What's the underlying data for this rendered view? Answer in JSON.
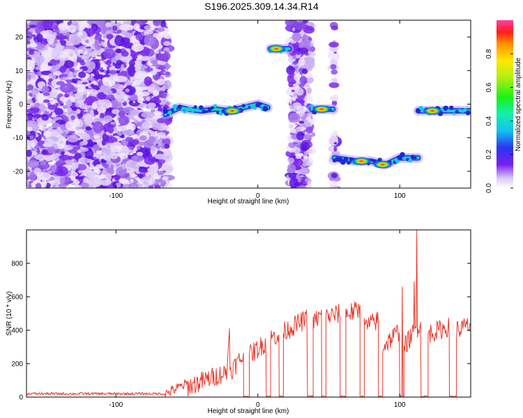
{
  "title": "S196.2025.309.14.34.R14",
  "chart_data": [
    {
      "type": "heatmap",
      "xlabel": "Height of straight line (km)",
      "ylabel": "Frequency (Hz)",
      "xlim": [
        -163,
        150
      ],
      "ylim": [
        -25,
        25
      ],
      "x_ticks": [
        -100,
        0,
        100
      ],
      "y_ticks": [
        -20,
        -10,
        0,
        10,
        20
      ],
      "colorbar": {
        "label": "Normalized spectral amplitude",
        "range": [
          0.0,
          1.0
        ],
        "ticks": [
          "0.0",
          "0.2",
          "0.4",
          "0.6",
          "0.8"
        ],
        "tick_values": [
          0.0,
          0.2,
          0.4,
          0.6,
          0.8
        ]
      },
      "noise_regions": [
        [
          -163,
          -63
        ],
        [
          23,
          37
        ],
        [
          53,
          55
        ]
      ],
      "signal_tracks": [
        {
          "x": [
            -65,
            -55,
            -50,
            -40,
            -30,
            -20,
            -10,
            0,
            7
          ],
          "y": [
            -3,
            -1,
            -1.5,
            -2,
            -1.5,
            -2,
            -1,
            0,
            -1
          ]
        },
        {
          "x": [
            9,
            22
          ],
          "y": [
            16.5,
            16.5
          ]
        },
        {
          "x": [
            38,
            53
          ],
          "y": [
            -1.5,
            -1.5
          ]
        },
        {
          "x": [
            54,
            70,
            80,
            90,
            100,
            113
          ],
          "y": [
            -16,
            -17,
            -17,
            -18,
            -16,
            -16
          ]
        },
        {
          "x": [
            113,
            150
          ],
          "y": [
            -2,
            -2
          ]
        }
      ],
      "peaks": [
        {
          "x": 13,
          "y": 16.5
        },
        {
          "x": 45,
          "y": -1.5
        },
        {
          "x": 73,
          "y": -17
        },
        {
          "x": 88,
          "y": -18
        },
        {
          "x": 123,
          "y": -2
        },
        {
          "x": -18,
          "y": -2
        }
      ]
    },
    {
      "type": "line",
      "xlabel": "Height of straight line (km)",
      "ylabel": "SNR (10 * v/v)",
      "xlim": [
        -163,
        150
      ],
      "ylim": [
        0,
        1000
      ],
      "x_ticks": [
        -100,
        0,
        100
      ],
      "y_ticks": [
        0,
        200,
        400,
        600,
        800
      ],
      "series": [
        {
          "color": "#e8382b",
          "baseline_segments": [
            {
              "x": [
                -163,
                -65
              ],
              "y": 20
            },
            {
              "x": [
                -65,
                -50
              ],
              "y": [
                20,
                80
              ]
            },
            {
              "x": [
                -50,
                -22
              ],
              "y": [
                60,
                150
              ]
            }
          ],
          "segments": [
            {
              "x": [
                -20,
                -10
              ],
              "y": [
                150,
                250
              ],
              "gap_after": [
                -10,
                -6
              ]
            },
            {
              "x": [
                -6,
                6
              ],
              "y": [
                250,
                330
              ],
              "gap_after": [
                6,
                9
              ]
            },
            {
              "x": [
                9,
                15
              ],
              "y": [
                350,
                380
              ],
              "gap_after": [
                15,
                18
              ]
            },
            {
              "x": [
                18,
                35
              ],
              "y": [
                390,
                470
              ],
              "gap_after": [
                35,
                39
              ]
            },
            {
              "x": [
                39,
                45
              ],
              "y": [
                450,
                490
              ],
              "gap_after": [
                45,
                48
              ]
            },
            {
              "x": [
                48,
                58
              ],
              "y": [
                480,
                500
              ],
              "gap_after": [
                58,
                62
              ]
            },
            {
              "x": [
                62,
                72
              ],
              "y": [
                500,
                520
              ],
              "gap_after": [
                72,
                75
              ]
            },
            {
              "x": [
                75,
                85
              ],
              "y": [
                420,
                460
              ],
              "gap_after": [
                85,
                88
              ]
            },
            {
              "x": [
                88,
                100
              ],
              "y": [
                300,
                400
              ],
              "gap_after": [
                100,
                103
              ]
            },
            {
              "x": [
                103,
                115
              ],
              "y": [
                300,
                450
              ],
              "gap_after": [
                115,
                120
              ]
            },
            {
              "x": [
                120,
                135
              ],
              "y": [
                380,
                420
              ],
              "gap_after": [
                135,
                140
              ]
            },
            {
              "x": [
                140,
                150
              ],
              "y": [
                400,
                430
              ]
            }
          ],
          "spikes": [
            {
              "x": -20,
              "y": 410
            },
            {
              "x": 102,
              "y": 660
            },
            {
              "x": 110,
              "y": 690
            },
            {
              "x": 112,
              "y": 1000
            },
            {
              "x": 72,
              "y": 550
            }
          ]
        }
      ]
    }
  ]
}
